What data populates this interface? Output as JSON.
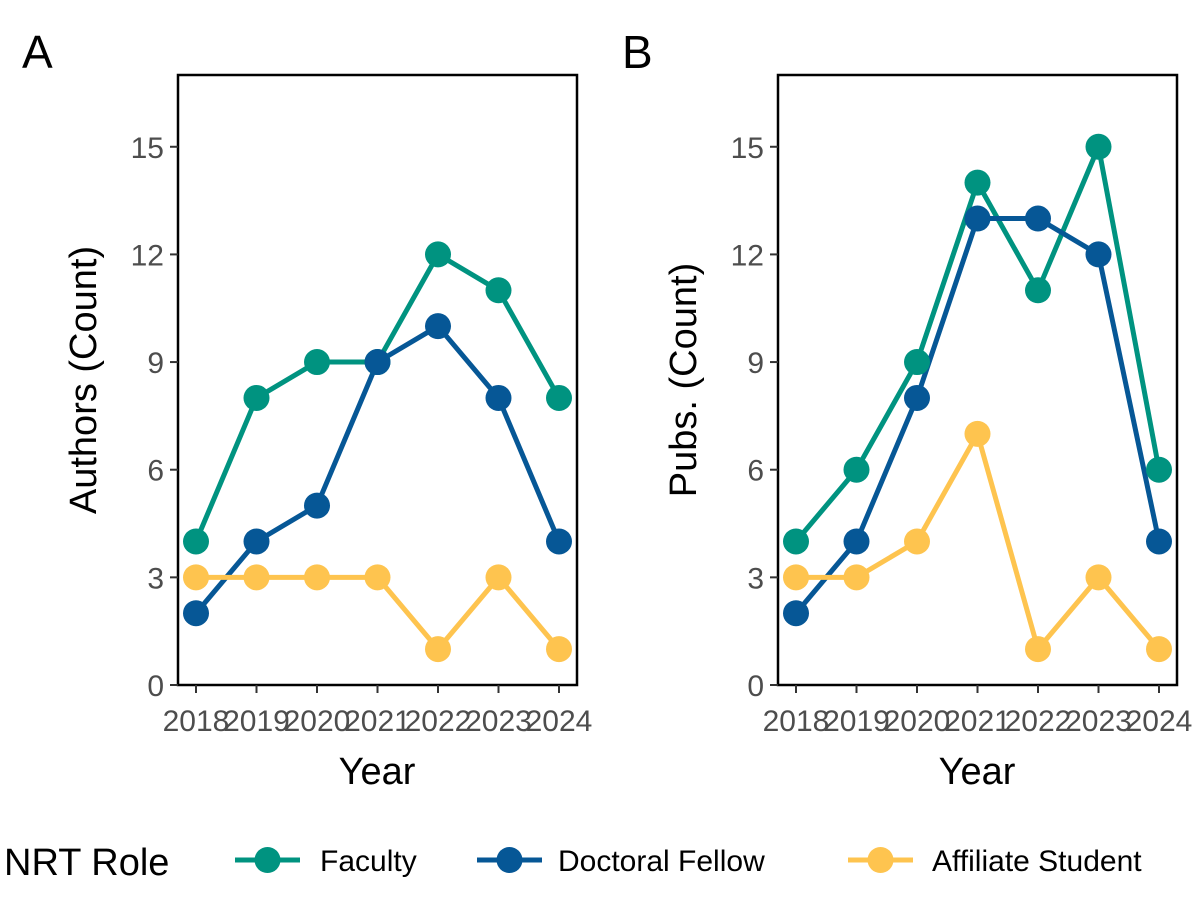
{
  "legend": {
    "title": "NRT Role",
    "entries": [
      {
        "label": "Faculty",
        "color": "#009380"
      },
      {
        "label": "Doctoral Fellow",
        "color": "#065796"
      },
      {
        "label": "Affiliate Student",
        "color": "#FEC44F"
      }
    ]
  },
  "chart_data": [
    {
      "type": "line",
      "panel_label": "A",
      "xlabel": "Year",
      "ylabel": "Authors (Count)",
      "x": [
        "2018",
        "2019",
        "2020",
        "2021",
        "2022",
        "2023",
        "2024"
      ],
      "ylim": [
        0,
        17
      ],
      "yticks": [
        0,
        3,
        6,
        9,
        12,
        15
      ],
      "grid": false,
      "legend_position": "bottom",
      "series": [
        {
          "name": "Faculty",
          "color": "#009380",
          "values": [
            4,
            8,
            9,
            9,
            12,
            11,
            8
          ]
        },
        {
          "name": "Doctoral Fellow",
          "color": "#065796",
          "values": [
            2,
            4,
            5,
            9,
            10,
            8,
            4
          ]
        },
        {
          "name": "Affiliate Student",
          "color": "#FEC44F",
          "values": [
            3,
            3,
            3,
            3,
            1,
            3,
            1
          ]
        }
      ]
    },
    {
      "type": "line",
      "panel_label": "B",
      "xlabel": "Year",
      "ylabel": "Pubs. (Count)",
      "x": [
        "2018",
        "2019",
        "2020",
        "2021",
        "2022",
        "2023",
        "2024"
      ],
      "ylim": [
        0,
        17
      ],
      "yticks": [
        0,
        3,
        6,
        9,
        12,
        15
      ],
      "grid": false,
      "legend_position": "bottom",
      "series": [
        {
          "name": "Faculty",
          "color": "#009380",
          "values": [
            4,
            6,
            9,
            14,
            11,
            15,
            6
          ]
        },
        {
          "name": "Doctoral Fellow",
          "color": "#065796",
          "values": [
            2,
            4,
            8,
            13,
            13,
            12,
            4
          ]
        },
        {
          "name": "Affiliate Student",
          "color": "#FEC44F",
          "values": [
            3,
            3,
            4,
            7,
            1,
            3,
            1
          ]
        }
      ]
    }
  ]
}
